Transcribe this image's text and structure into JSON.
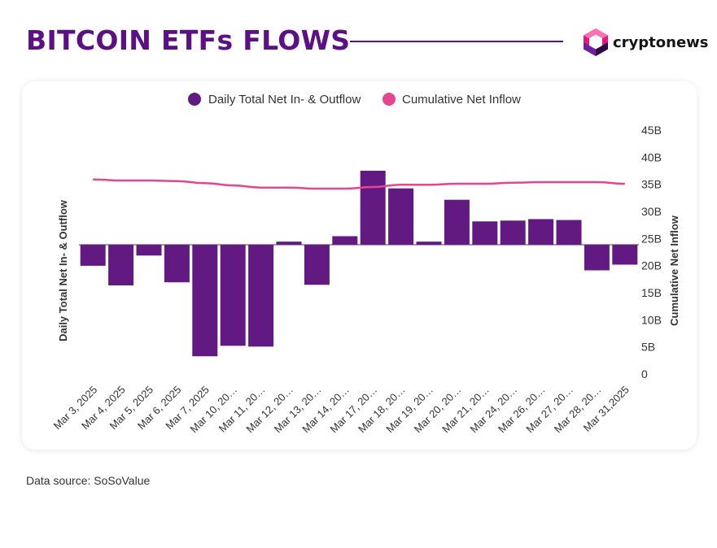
{
  "header": {
    "title": "BITCOIN ETFs FLOWS",
    "brand_name": "cryptonews",
    "brand_colors": [
      "#e8157f",
      "#6b1fa5",
      "#2a0a4a"
    ]
  },
  "footer": {
    "source_text": "Data source: SoSoValue"
  },
  "colors": {
    "bar": "#621a82",
    "line": "#e6458f",
    "title": "#5b1083"
  },
  "chart_data": {
    "type": "bar",
    "title": "",
    "legend_position": "top",
    "legend": [
      {
        "label": "Daily Total Net In- & Outflow",
        "color": "#621a82"
      },
      {
        "label": "Cumulative Net Inflow",
        "color": "#e6458f"
      }
    ],
    "categories": [
      "Mar 3, 2025",
      "Mar 4, 2025",
      "Mar 5, 2025",
      "Mar 6, 2025",
      "Mar 7, 2025",
      "Mar 10, 2025",
      "Mar 11, 2025",
      "Mar 12, 2025",
      "Mar 13, 2025",
      "Mar 14, 2025",
      "Mar 17, 2025",
      "Mar 18, 2025",
      "Mar 19, 2025",
      "Mar 20, 2025",
      "Mar 21, 2025",
      "Mar 24, 2025",
      "Mar 26, 2025",
      "Mar 27, 2025",
      "Mar 28, 2025",
      "Mar 31, 2025"
    ],
    "tick_labels": [
      "Mar 3, 2025",
      "Mar 4, 2025",
      "Mar 5, 2025",
      "Mar 6, 2025",
      "Mar 7, 2025",
      "Mar 10, 20…",
      "Mar 11, 20…",
      "Mar 12, 20…",
      "Mar 13, 20…",
      "Mar 14, 20…",
      "Mar 17, 20…",
      "Mar 18, 20…",
      "Mar 19, 20…",
      "Mar 20, 20…",
      "Mar 21, 20…",
      "Mar 24, 20…",
      "Mar 26, 20…",
      "Mar 27, 20…",
      "Mar 28, 20…",
      "Mar 31,2025"
    ],
    "series": [
      {
        "name": "Daily Total Net In- & Outflow",
        "type": "bar",
        "axis": "left",
        "values": [
          -0.74,
          -1.43,
          -0.38,
          -1.32,
          -3.92,
          -3.55,
          -3.58,
          0.11,
          -1.41,
          0.3,
          2.6,
          1.98,
          0.11,
          1.58,
          0.82,
          0.85,
          0.9,
          0.87,
          -0.9,
          -0.7
        ]
      },
      {
        "name": "Cumulative Net Inflow",
        "type": "line",
        "axis": "right",
        "values": [
          35.9,
          35.7,
          35.7,
          35.6,
          35.2,
          34.8,
          34.4,
          34.4,
          34.2,
          34.2,
          34.5,
          34.9,
          34.9,
          35.1,
          35.1,
          35.3,
          35.4,
          35.4,
          35.4,
          35.1
        ]
      }
    ],
    "y_left": {
      "label": "Daily Total Net In- & Outflow",
      "ticks_shown": false,
      "zero_value": 0
    },
    "y_right": {
      "label": "Cumulative Net Inflow",
      "ylim": [
        0,
        45
      ],
      "tick_labels": [
        "0",
        "5B",
        "10B",
        "15B",
        "20B",
        "25B",
        "30B",
        "35B",
        "40B",
        "45B"
      ]
    },
    "grid": false
  }
}
